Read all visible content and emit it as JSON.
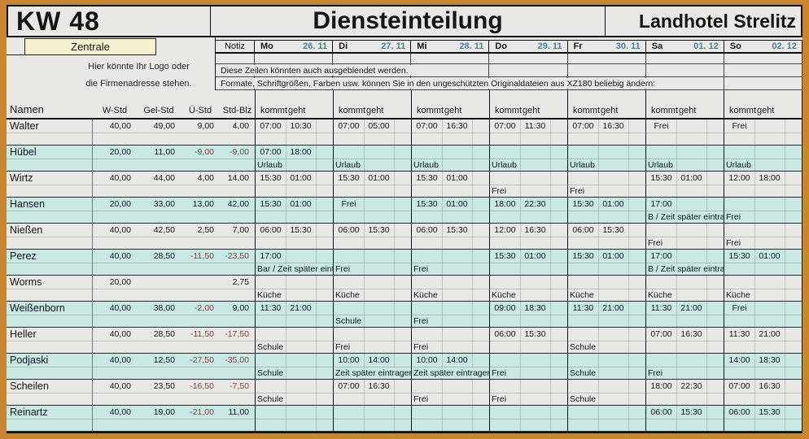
{
  "title": {
    "week": "KW 48",
    "main": "Diensteinteilung",
    "hotel": "Landhotel Strelitz"
  },
  "subheader": {
    "sheet_tab": "Zentrale",
    "logo_line1": "Hier könnte Ihr Logo oder",
    "logo_line2": "die Firmenadresse stehen.",
    "notiz_label": "Notiz",
    "note1": "Diese Zeilen könnten auch ausgeblendet werden.",
    "note2": "Formate, Schriftgrößen, Farben usw. können Sie in den ungeschützten Originaldateien aus XZ180 beliebig ändern:"
  },
  "days": [
    {
      "name": "Mo",
      "date": "26. 11"
    },
    {
      "name": "Di",
      "date": "27. 11"
    },
    {
      "name": "Mi",
      "date": "28. 11"
    },
    {
      "name": "Do",
      "date": "29. 11"
    },
    {
      "name": "Fr",
      "date": "30. 11"
    },
    {
      "name": "Sa",
      "date": "01. 12"
    },
    {
      "name": "So",
      "date": "02. 12"
    }
  ],
  "columns": {
    "name": "Namen",
    "stats": [
      "W-Std",
      "Gel-Std",
      "Ü-Std",
      "Std-Blz"
    ],
    "kommt": "kommt",
    "geht": "geht"
  },
  "colors": {
    "frame_orange": "#c9862f",
    "row_gray": "#e8e8e4",
    "row_teal": "#c8e8e4",
    "tab_yellow": "#f2f0cf",
    "date_blue": "#44819e",
    "negative_red": "#8e3b3b"
  },
  "rows": [
    {
      "name": "Walter",
      "stats": [
        "40,00",
        "49,00",
        "9,00",
        "4,00"
      ],
      "days": [
        {
          "k": "07:00",
          "g": "10:30"
        },
        {
          "k": "07:00",
          "g": "05:00"
        },
        {
          "k": "07:00",
          "g": "16:30"
        },
        {
          "k": "07:00",
          "g": "11:30"
        },
        {
          "k": "07:00",
          "g": "16:30"
        },
        {
          "n1": "Frei"
        },
        {
          "n1": "Frei"
        }
      ]
    },
    {
      "name": "Hübel",
      "stats": [
        "20,00",
        "11,00",
        "-9,00",
        "-9,00"
      ],
      "days": [
        {
          "k": "07:00",
          "g": "18:00",
          "n2": "Urlaub"
        },
        {
          "n2": "Urlaub"
        },
        {
          "n2": "Urlaub"
        },
        {
          "n2": "Urlaub"
        },
        {
          "n2": "Urlaub"
        },
        {
          "n2": "Urlaub"
        },
        {
          "n2": "Urlaub"
        }
      ]
    },
    {
      "name": "Wirtz",
      "stats": [
        "40,00",
        "44,00",
        "4,00",
        "14,00"
      ],
      "days": [
        {
          "k": "15:30",
          "g": "01:00"
        },
        {
          "k": "15:30",
          "g": "01:00"
        },
        {
          "k": "15:30",
          "g": "01:00"
        },
        {
          "n2": "Frei"
        },
        {
          "n2": "Frei"
        },
        {
          "k": "15:30",
          "g": "01:00"
        },
        {
          "k": "12:00",
          "g": "18:00"
        }
      ]
    },
    {
      "name": "Hansen",
      "stats": [
        "20,00",
        "33,00",
        "13,00",
        "42,00"
      ],
      "days": [
        {
          "k": "15:30",
          "g": "01:00"
        },
        {
          "n1": "Frei"
        },
        {
          "k": "15:30",
          "g": "01:00"
        },
        {
          "k": "18:00",
          "g": "22:30"
        },
        {
          "k": "15:30",
          "g": "01:00"
        },
        {
          "k": "17:00",
          "n2": "B / Zeit später eintragen"
        },
        {
          "n2": "Frei"
        }
      ]
    },
    {
      "name": "Nießen",
      "stats": [
        "40,00",
        "42,50",
        "2,50",
        "7,00"
      ],
      "days": [
        {
          "k": "06:00",
          "g": "15:30"
        },
        {
          "k": "06:00",
          "g": "15:30"
        },
        {
          "k": "06:00",
          "g": "15:30"
        },
        {
          "k": "12:00",
          "g": "16:30"
        },
        {
          "k": "06:00",
          "g": "15:30"
        },
        {
          "n2": "Frei"
        },
        {
          "n2": "Frei"
        }
      ]
    },
    {
      "name": "Perez",
      "stats": [
        "40,00",
        "28,50",
        "-11,50",
        "-23,50"
      ],
      "days": [
        {
          "k": "17:00",
          "n2": "Bar / Zeit später eintragen"
        },
        {
          "n2": "Frei"
        },
        {
          "n2": "Frei"
        },
        {
          "k": "15:30",
          "g": "01:00"
        },
        {
          "k": "15:30",
          "g": "01:00"
        },
        {
          "k": "17:00",
          "n2": "B / Zeit später eintragen"
        },
        {
          "k": "15:30",
          "g": "01:00"
        }
      ]
    },
    {
      "name": "Worms",
      "stats": [
        "20,00",
        "",
        "",
        "2,75"
      ],
      "days": [
        {
          "n2": "Küche"
        },
        {
          "n2": "Küche"
        },
        {
          "n2": "Küche"
        },
        {
          "n2": "Küche"
        },
        {
          "n2": "Küche"
        },
        {
          "n2": "Küche"
        },
        {
          "n2": "Küche"
        }
      ]
    },
    {
      "name": "Weißenborn",
      "stats": [
        "40,00",
        "38,00",
        "-2,00",
        "9,00"
      ],
      "days": [
        {
          "k": "11:30",
          "g": "21:00"
        },
        {
          "n2": "Schule"
        },
        {
          "n2": "Frei"
        },
        {
          "k": "09:00",
          "g": "18:30"
        },
        {
          "k": "11:30",
          "g": "21:00"
        },
        {
          "k": "11:30",
          "g": "21:00"
        },
        {
          "n1": "Frei"
        }
      ]
    },
    {
      "name": "Heller",
      "stats": [
        "40,00",
        "28,50",
        "-11,50",
        "-17,50"
      ],
      "days": [
        {
          "n2": "Schule"
        },
        {
          "n2": "Frei"
        },
        {
          "n2": "Frei"
        },
        {
          "k": "06:00",
          "g": "15:30"
        },
        {
          "n2": "Schule"
        },
        {
          "k": "07:00",
          "g": "16:30"
        },
        {
          "k": "11:30",
          "g": "21:00"
        }
      ]
    },
    {
      "name": "Podjaski",
      "stats": [
        "40,00",
        "12,50",
        "-27,50",
        "-35,00"
      ],
      "days": [
        {
          "n2": "Schule"
        },
        {
          "k": "10:00",
          "g": "14:00",
          "n2": "Zeit später eintragen"
        },
        {
          "k": "10:00",
          "g": "14:00",
          "n2": "Zeit später eintragen"
        },
        {
          "n2": "Frei"
        },
        {
          "n2": "Schule"
        },
        {
          "n2": "Frei"
        },
        {
          "k": "14:00",
          "g": "18:30"
        }
      ]
    },
    {
      "name": "Scheilen",
      "stats": [
        "40,00",
        "23,50",
        "-16,50",
        "-7,50"
      ],
      "days": [
        {
          "n2": "Schule"
        },
        {
          "k": "07:00",
          "g": "16:30"
        },
        {
          "n2": "Frei"
        },
        {
          "n2": "Frei"
        },
        {
          "n2": "Schule"
        },
        {
          "k": "18:00",
          "g": "22:30"
        },
        {
          "k": "07:00",
          "g": "16:30"
        }
      ]
    },
    {
      "name": "Reinartz",
      "stats": [
        "40,00",
        "19,00",
        "-21,00",
        "11,00"
      ],
      "days": [
        {},
        {},
        {},
        {},
        {},
        {
          "k": "06:00",
          "g": "15:30"
        },
        {
          "k": "06:00",
          "g": "15:30"
        }
      ]
    }
  ]
}
